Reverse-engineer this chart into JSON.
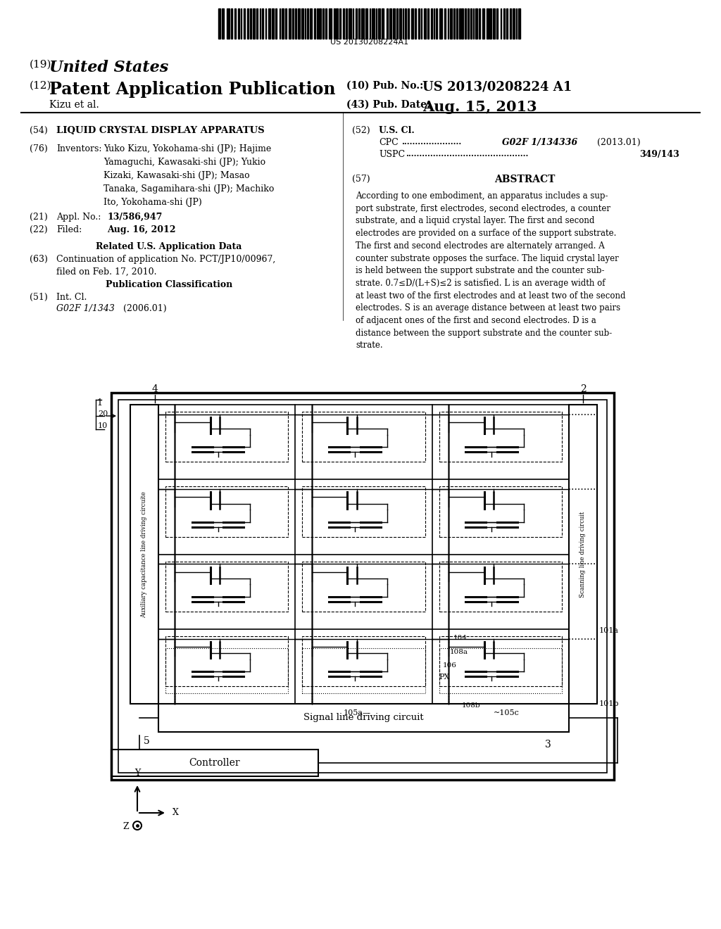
{
  "bg_color": "#ffffff",
  "barcode_text": "US 20130208224A1",
  "pub_no": "US 2013/0208224 A1",
  "pub_date": "Aug. 15, 2013",
  "abstract": "According to one embodiment, an apparatus includes a sup-\nport substrate, first electrodes, second electrodes, a counter\nsubstrate, and a liquid crystal layer. The first and second\nelectrodes are provided on a surface of the support substrate.\nThe first and second electrodes are alternately arranged. A\ncounter substrate opposes the surface. The liquid crystal layer\nis held between the support substrate and the counter sub-\nstrate. 0.7≤D/(L+S)≤2 is satisfied. L is an average width of\nat least two of the first electrodes and at least two of the second\nelectrodes. S is an average distance between at least two pairs\nof adjacent ones of the first and second electrodes. D is a\ndistance between the support substrate and the counter sub-\nstrate.",
  "section21_value": "13/586,947",
  "section22_value": "Aug. 16, 2012",
  "section63_value": "Continuation of application No. PCT/JP10/00967,\nfiled on Feb. 17, 2010.",
  "section51_class": "G02F 1/1343",
  "section51_year": "(2006.01)",
  "cpc_value": "G02F 1/134336",
  "cpc_year": "(2013.01)",
  "uspc_value": "349/143"
}
